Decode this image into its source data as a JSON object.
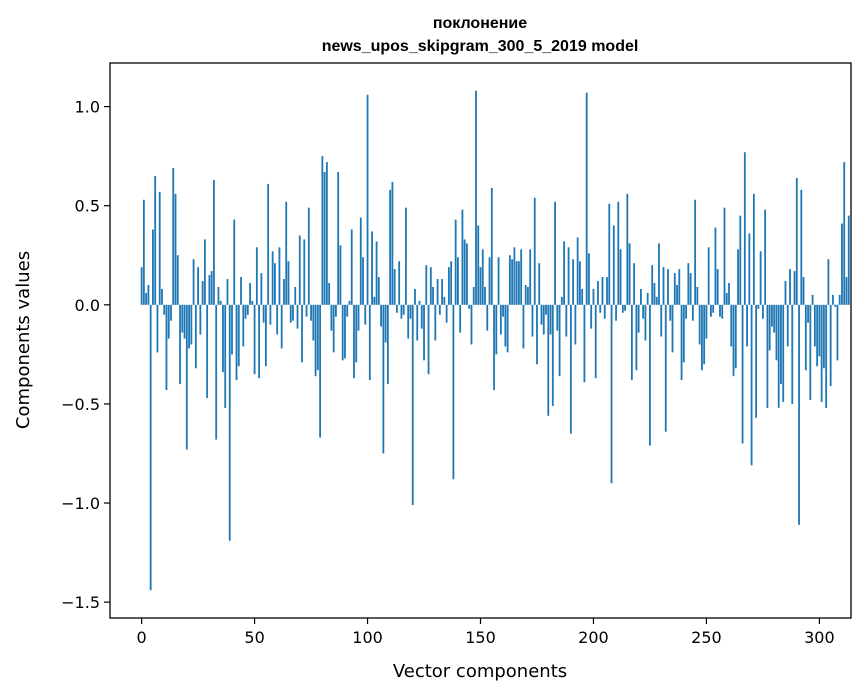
{
  "chart_data": {
    "type": "bar",
    "title_lines": [
      "поклонение",
      "news_upos_skipgram_300_5_2019 model"
    ],
    "xlabel": "Vector components",
    "ylabel": "Components values",
    "xlim": [
      -14,
      314
    ],
    "ylim": [
      -1.58,
      1.22
    ],
    "xticks": [
      0,
      50,
      100,
      150,
      200,
      250,
      300
    ],
    "yticks": [
      -1.5,
      -1.0,
      -0.5,
      0.0,
      0.5,
      1.0
    ],
    "ytick_labels": [
      "−1.5",
      "−1.0",
      "−0.5",
      "0.0",
      "0.5",
      "1.0"
    ],
    "grid": false,
    "bar_color": "#1f77b4",
    "values": [
      0.19,
      0.53,
      0.06,
      0.1,
      -1.44,
      0.38,
      0.65,
      -0.24,
      0.57,
      0.08,
      -0.05,
      -0.43,
      -0.17,
      -0.08,
      0.69,
      0.56,
      0.25,
      -0.4,
      -0.14,
      -0.17,
      -0.73,
      -0.22,
      -0.2,
      0.23,
      -0.32,
      0.19,
      -0.15,
      0.12,
      0.33,
      -0.47,
      0.15,
      0.17,
      0.63,
      -0.68,
      0.09,
      0.02,
      -0.34,
      -0.52,
      0.13,
      -1.19,
      -0.25,
      0.43,
      -0.38,
      -0.31,
      0.14,
      -0.21,
      -0.07,
      -0.05,
      0.11,
      0.02,
      -0.35,
      0.29,
      -0.37,
      0.16,
      -0.09,
      -0.31,
      0.61,
      -0.1,
      0.27,
      0.21,
      -0.15,
      0.29,
      -0.22,
      0.13,
      0.52,
      0.22,
      -0.09,
      -0.08,
      0.09,
      -0.12,
      0.35,
      -0.29,
      0.33,
      -0.06,
      0.49,
      -0.08,
      -0.18,
      -0.36,
      -0.33,
      -0.67,
      0.75,
      0.67,
      0.72,
      0.11,
      -0.13,
      -0.24,
      -0.06,
      0.67,
      0.3,
      -0.28,
      -0.27,
      -0.06,
      0.02,
      0.38,
      -0.37,
      -0.29,
      -0.13,
      0.44,
      0.24,
      -0.1,
      1.06,
      -0.38,
      0.37,
      0.04,
      0.32,
      0.14,
      -0.11,
      -0.75,
      -0.19,
      -0.4,
      0.58,
      0.62,
      0.18,
      -0.04,
      0.22,
      -0.07,
      -0.05,
      0.49,
      -0.17,
      -0.07,
      -1.01,
      0.08,
      -0.18,
      0.02,
      -0.12,
      -0.28,
      0.2,
      -0.35,
      0.19,
      0.09,
      -0.18,
      0.13,
      -0.05,
      0.13,
      0.04,
      -0.09,
      0.19,
      0.22,
      -0.88,
      0.43,
      0.24,
      -0.14,
      0.48,
      0.33,
      0.31,
      -0.02,
      -0.2,
      0.09,
      1.08,
      0.4,
      0.19,
      0.28,
      0.09,
      -0.13,
      0.24,
      0.59,
      -0.43,
      -0.25,
      0.24,
      -0.15,
      -0.06,
      -0.21,
      -0.24,
      0.25,
      0.23,
      0.29,
      0.22,
      0.22,
      0.28,
      -0.22,
      0.1,
      0.09,
      0.28,
      -0.16,
      0.54,
      -0.3,
      0.21,
      -0.1,
      -0.15,
      -0.05,
      -0.56,
      -0.15,
      -0.51,
      0.52,
      -0.13,
      -0.36,
      0.04,
      0.32,
      -0.16,
      0.29,
      -0.65,
      0.23,
      -0.2,
      0.34,
      0.22,
      0.08,
      -0.39,
      1.07,
      0.26,
      -0.12,
      0.08,
      -0.37,
      0.12,
      -0.04,
      0.14,
      -0.07,
      0.14,
      0.51,
      -0.9,
      0.4,
      -0.08,
      0.52,
      0.28,
      -0.04,
      -0.03,
      0.56,
      0.31,
      -0.38,
      0.21,
      -0.33,
      -0.14,
      0.08,
      -0.07,
      -0.18,
      0.06,
      -0.71,
      0.2,
      0.11,
      0.04,
      0.31,
      -0.16,
      0.19,
      -0.64,
      0.18,
      -0.08,
      -0.24,
      0.16,
      0.1,
      0.18,
      -0.38,
      -0.29,
      -0.07,
      0.21,
      0.16,
      -0.08,
      0.53,
      0.09,
      -0.2,
      -0.33,
      -0.3,
      -0.17,
      0.29,
      -0.06,
      -0.04,
      0.39,
      0.18,
      -0.06,
      -0.07,
      0.49,
      0.06,
      0.11,
      -0.21,
      -0.36,
      -0.32,
      0.28,
      0.45,
      -0.7,
      0.77,
      -0.21,
      0.36,
      -0.81,
      0.56,
      -0.57,
      -0.02,
      0.27,
      -0.07,
      0.48,
      -0.52,
      -0.23,
      -0.11,
      -0.14,
      -0.28,
      -0.52,
      -0.4,
      -0.49,
      0.12,
      -0.21,
      0.18,
      -0.5,
      0.17,
      0.64,
      -1.11,
      0.58,
      0.14,
      -0.33,
      -0.09,
      -0.48,
      0.05,
      -0.21,
      -0.31,
      -0.26,
      -0.49,
      -0.32,
      -0.52,
      0.23,
      -0.41,
      0.05,
      -0.01,
      -0.28,
      0.05,
      0.41,
      0.72,
      0.14,
      0.45
    ]
  }
}
